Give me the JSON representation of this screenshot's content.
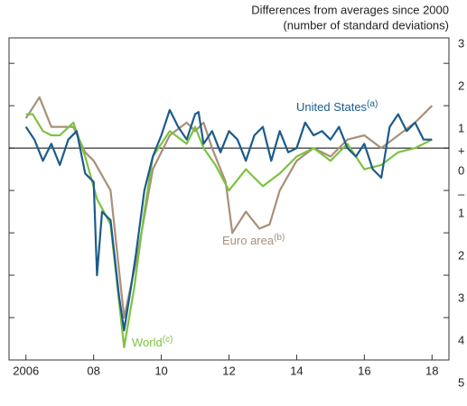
{
  "chart_data": {
    "type": "line",
    "title_lines": [
      "Differences from averages since 2000",
      "(number of standard deviations)"
    ],
    "sign_labels": [
      "+",
      "–"
    ],
    "xlim": [
      2005.5,
      2018.5
    ],
    "xticks": [
      {
        "value": 2006,
        "label": "2006"
      },
      {
        "value": 2008,
        "label": "08"
      },
      {
        "value": 2010,
        "label": "10"
      },
      {
        "value": 2012,
        "label": "12"
      },
      {
        "value": 2014,
        "label": "14"
      },
      {
        "value": 2016,
        "label": "16"
      },
      {
        "value": 2018,
        "label": "18"
      }
    ],
    "ylim": [
      -5,
      2.6
    ],
    "yticks": [
      {
        "value": -5,
        "label": "5"
      },
      {
        "value": -4,
        "label": "4"
      },
      {
        "value": -3,
        "label": "3"
      },
      {
        "value": -2,
        "label": "2"
      },
      {
        "value": -1,
        "label": "1"
      },
      0,
      1,
      2,
      3
    ],
    "series": [
      {
        "name": "United States",
        "note": "(a)",
        "color": "#1c5b8c",
        "x": [
          2006.0,
          2006.25,
          2006.5,
          2006.75,
          2007.0,
          2007.25,
          2007.5,
          2007.75,
          2008.0,
          2008.1,
          2008.25,
          2008.5,
          2008.75,
          2008.9,
          2009.1,
          2009.25,
          2009.5,
          2009.75,
          2010.0,
          2010.25,
          2010.5,
          2010.75,
          2011.0,
          2011.1,
          2011.25,
          2011.5,
          2011.75,
          2012.0,
          2012.25,
          2012.5,
          2012.75,
          2013.0,
          2013.25,
          2013.5,
          2013.75,
          2014.0,
          2014.25,
          2014.5,
          2014.75,
          2015.0,
          2015.25,
          2015.5,
          2015.75,
          2016.0,
          2016.25,
          2016.5,
          2016.75,
          2017.0,
          2017.25,
          2017.5,
          2017.75,
          2018.0
        ],
        "values": [
          0.5,
          0.2,
          -0.3,
          0.1,
          -0.4,
          0.2,
          0.4,
          -0.6,
          -0.8,
          -3.0,
          -1.5,
          -1.7,
          -3.5,
          -4.3,
          -3.3,
          -2.5,
          -1.0,
          -0.2,
          0.3,
          0.9,
          0.5,
          0.2,
          0.8,
          0.85,
          0.1,
          0.4,
          -0.1,
          0.4,
          0.2,
          -0.3,
          0.3,
          0.5,
          -0.3,
          0.4,
          -0.1,
          0.0,
          0.6,
          0.3,
          0.4,
          0.2,
          0.5,
          0.0,
          -0.2,
          0.1,
          -0.5,
          -0.7,
          0.5,
          0.8,
          0.4,
          0.6,
          0.2,
          0.2
        ]
      },
      {
        "name": "Euro area",
        "note": "(b)",
        "color": "#a89078",
        "x": [
          2006.0,
          2006.4,
          2006.75,
          2007.0,
          2007.4,
          2007.75,
          2008.0,
          2008.5,
          2008.9,
          2009.3,
          2009.75,
          2010.25,
          2010.75,
          2011.0,
          2011.25,
          2011.5,
          2011.9,
          2012.1,
          2012.5,
          2012.9,
          2013.2,
          2013.5,
          2014.0,
          2014.5,
          2015.0,
          2015.5,
          2016.0,
          2016.5,
          2017.0,
          2017.5,
          2018.0
        ],
        "values": [
          0.7,
          1.2,
          0.5,
          0.5,
          0.5,
          -0.1,
          -0.3,
          -1.0,
          -4.0,
          -2.5,
          -0.5,
          0.3,
          0.6,
          0.4,
          0.6,
          0.0,
          -0.8,
          -2.0,
          -1.5,
          -1.9,
          -1.8,
          -1.0,
          -0.3,
          0.0,
          -0.2,
          0.2,
          0.3,
          0.0,
          0.3,
          0.6,
          1.0
        ]
      },
      {
        "name": "World",
        "note": "(c)",
        "color": "#7dc242",
        "x": [
          2006.0,
          2006.2,
          2006.5,
          2006.75,
          2007.0,
          2007.4,
          2007.75,
          2008.1,
          2008.5,
          2008.9,
          2009.2,
          2009.5,
          2009.75,
          2010.25,
          2010.75,
          2011.0,
          2011.25,
          2011.6,
          2012.0,
          2012.5,
          2013.0,
          2013.5,
          2014.0,
          2014.5,
          2015.0,
          2015.5,
          2016.0,
          2016.5,
          2017.0,
          2017.5,
          2018.0
        ],
        "values": [
          0.8,
          0.8,
          0.4,
          0.3,
          0.3,
          0.6,
          -0.2,
          -1.2,
          -1.8,
          -4.7,
          -3.3,
          -1.5,
          -0.2,
          0.4,
          0.1,
          0.5,
          0.0,
          -0.4,
          -1.0,
          -0.5,
          -0.9,
          -0.6,
          -0.2,
          0.0,
          -0.3,
          0.1,
          -0.5,
          -0.4,
          -0.1,
          0.0,
          0.2
        ]
      }
    ]
  }
}
